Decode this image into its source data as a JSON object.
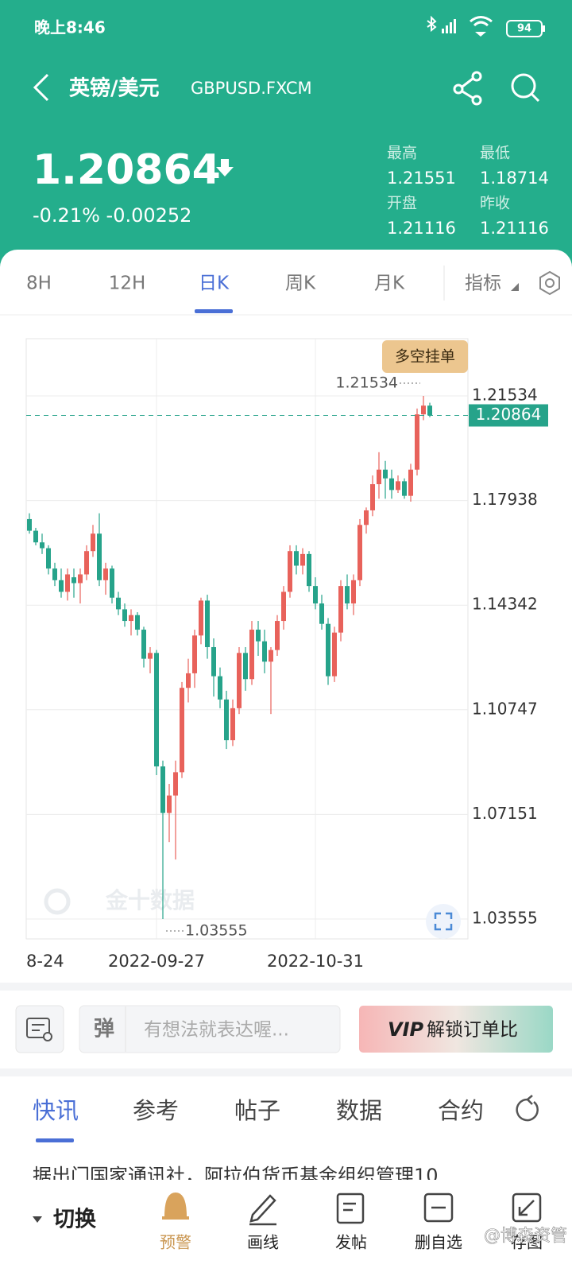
{
  "status_bar": {
    "time": "晚上8:46",
    "battery": "94"
  },
  "header": {
    "title": "英镑/美元",
    "symbol": "GBPUSD.FXCM"
  },
  "quote": {
    "price": "1.20864",
    "change": "-0.21% -0.00252",
    "stats": [
      {
        "label": "最高",
        "value": "1.21551"
      },
      {
        "label": "最低",
        "value": "1.18714"
      },
      {
        "label": "开盘",
        "value": "1.21116"
      },
      {
        "label": "昨收",
        "value": "1.21116"
      }
    ]
  },
  "period_tabs": [
    "8H",
    "12H",
    "日K",
    "周K",
    "月K",
    "指标"
  ],
  "chart_data": {
    "type": "candlestick",
    "button": "多空挂单",
    "watermark": "金十数据",
    "x_left_label": "8-24",
    "categories": [
      null,
      null,
      null,
      null,
      null,
      null,
      null,
      null,
      null,
      null,
      null,
      null,
      null,
      null,
      null,
      null,
      null,
      null,
      null,
      null,
      "2022-09-27",
      null,
      null,
      null,
      null,
      null,
      null,
      null,
      null,
      null,
      null,
      null,
      null,
      null,
      null,
      null,
      null,
      null,
      null,
      null,
      null,
      null,
      null,
      null,
      null,
      "2022-10-31",
      null,
      null,
      null,
      null,
      null,
      null,
      null,
      null,
      null,
      null,
      null,
      null,
      null,
      null,
      null,
      null,
      null,
      null
    ],
    "open": [
      1.173,
      1.169,
      1.165,
      1.163,
      1.156,
      1.152,
      1.148,
      1.153,
      1.151,
      1.154,
      1.162,
      1.168,
      1.152,
      1.156,
      1.146,
      1.142,
      1.138,
      1.14,
      1.135,
      1.125,
      1.127,
      1.088,
      1.072,
      1.078,
      1.086,
      1.115,
      1.12,
      1.133,
      1.145,
      1.129,
      1.119,
      1.111,
      1.097,
      1.108,
      1.127,
      1.118,
      1.135,
      1.131,
      1.124,
      1.128,
      1.138,
      1.148,
      1.162,
      1.157,
      1.161,
      1.15,
      1.144,
      1.137,
      1.119,
      1.134,
      1.15,
      1.144,
      1.152,
      1.171,
      1.176,
      1.185,
      1.19,
      1.187,
      1.183,
      1.186,
      1.181,
      1.19,
      1.209,
      1.212
    ],
    "high": [
      1.175,
      1.17,
      1.168,
      1.164,
      1.158,
      1.156,
      1.156,
      1.156,
      1.156,
      1.164,
      1.171,
      1.175,
      1.158,
      1.157,
      1.148,
      1.144,
      1.142,
      1.141,
      1.136,
      1.129,
      1.128,
      1.09,
      1.082,
      1.09,
      1.117,
      1.125,
      1.135,
      1.146,
      1.147,
      1.132,
      1.122,
      1.114,
      1.111,
      1.129,
      1.129,
      1.138,
      1.138,
      1.135,
      1.129,
      1.14,
      1.15,
      1.164,
      1.164,
      1.163,
      1.162,
      1.153,
      1.147,
      1.139,
      1.136,
      1.152,
      1.154,
      1.154,
      1.173,
      1.177,
      1.188,
      1.196,
      1.193,
      1.19,
      1.188,
      1.187,
      1.192,
      1.211,
      1.21534,
      1.213
    ],
    "low": [
      1.168,
      1.164,
      1.161,
      1.154,
      1.15,
      1.146,
      1.145,
      1.146,
      1.144,
      1.152,
      1.16,
      1.15,
      1.147,
      1.144,
      1.14,
      1.136,
      1.133,
      1.133,
      1.122,
      1.12,
      1.085,
      1.03555,
      1.062,
      1.056,
      1.084,
      1.11,
      1.115,
      1.13,
      1.125,
      1.112,
      1.108,
      1.094,
      1.095,
      1.106,
      1.114,
      1.116,
      1.126,
      1.12,
      1.106,
      1.126,
      1.135,
      1.146,
      1.154,
      1.154,
      1.148,
      1.142,
      1.135,
      1.116,
      1.117,
      1.131,
      1.142,
      1.14,
      1.15,
      1.168,
      1.174,
      1.18,
      1.18,
      1.18,
      1.182,
      1.18,
      1.179,
      1.188,
      1.207,
      1.208
    ],
    "close": [
      1.169,
      1.165,
      1.163,
      1.156,
      1.152,
      1.148,
      1.154,
      1.151,
      1.154,
      1.162,
      1.168,
      1.152,
      1.156,
      1.146,
      1.142,
      1.138,
      1.14,
      1.135,
      1.125,
      1.127,
      1.088,
      1.072,
      1.078,
      1.086,
      1.115,
      1.12,
      1.133,
      1.145,
      1.129,
      1.119,
      1.111,
      1.097,
      1.108,
      1.127,
      1.118,
      1.135,
      1.131,
      1.124,
      1.128,
      1.138,
      1.148,
      1.162,
      1.157,
      1.161,
      1.15,
      1.144,
      1.137,
      1.119,
      1.134,
      1.15,
      1.144,
      1.152,
      1.171,
      1.176,
      1.185,
      1.19,
      1.187,
      1.183,
      1.186,
      1.181,
      1.19,
      1.209,
      1.212,
      1.20864
    ],
    "up_color": "#e8625b",
    "down_color": "#26a38a",
    "last_price": 1.20864,
    "max_label": 1.21534,
    "min_label": 1.03555,
    "ylim": [
      1.02872,
      1.23501
    ],
    "yticks": [
      1.03555,
      1.07151,
      1.10747,
      1.14342,
      1.17938,
      1.21534
    ],
    "grid": true
  },
  "composer": {
    "placeholder": "有想法就表达喔...",
    "vip_button": "解锁订单比"
  },
  "news_tabs": [
    "快讯",
    "参考",
    "帖子",
    "数据",
    "合约"
  ],
  "news_preview": "据出门国家通讯社，阿拉伯货币基金组织管理10",
  "bottom_nav": {
    "switch": "切换",
    "items": [
      "预警",
      "画线",
      "发帖",
      "删自选",
      "存图"
    ]
  },
  "watermark": "@博森资管"
}
